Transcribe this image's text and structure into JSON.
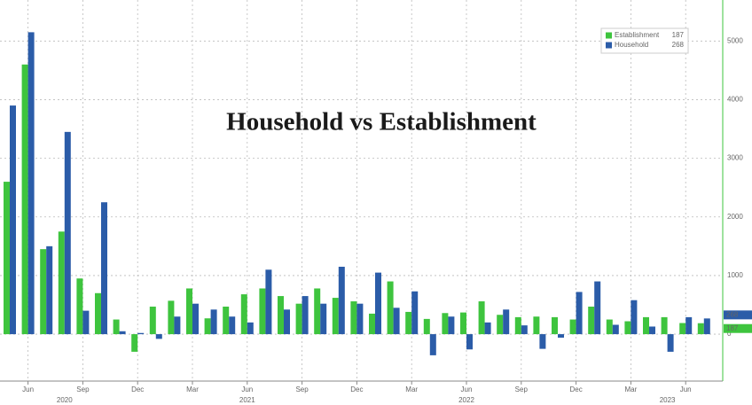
{
  "chart_data": {
    "type": "bar",
    "title": "Household vs Establishment",
    "categories": [
      null,
      "Jun",
      null,
      null,
      "Sep",
      null,
      null,
      "Dec",
      null,
      null,
      "Mar",
      null,
      null,
      "Jun",
      null,
      null,
      "Sep",
      null,
      null,
      "Dec",
      null,
      null,
      "Mar",
      null,
      null,
      "Jun",
      null,
      null,
      "Sep",
      null,
      null,
      "Dec",
      null,
      null,
      "Mar",
      null,
      null,
      "Jun",
      null
    ],
    "years": [
      null,
      null,
      null,
      "2020",
      null,
      null,
      null,
      null,
      null,
      null,
      null,
      null,
      null,
      "2021",
      null,
      null,
      null,
      null,
      null,
      null,
      null,
      null,
      null,
      null,
      null,
      "2022",
      null,
      null,
      null,
      null,
      null,
      null,
      null,
      null,
      null,
      null,
      "2023",
      null,
      null
    ],
    "series": [
      {
        "name": "Establishment",
        "color": "#3ec43e",
        "values": [
          2600,
          4600,
          1450,
          1750,
          950,
          700,
          250,
          -300,
          470,
          570,
          780,
          270,
          470,
          680,
          780,
          650,
          520,
          780,
          620,
          560,
          350,
          900,
          380,
          260,
          360,
          370,
          560,
          330,
          290,
          300,
          290,
          250,
          470,
          250,
          220,
          290,
          290,
          190,
          187
        ]
      },
      {
        "name": "Household",
        "color": "#2b5ca8",
        "values": [
          3900,
          5150,
          1500,
          3450,
          400,
          2250,
          50,
          20,
          -80,
          300,
          520,
          420,
          300,
          200,
          1100,
          420,
          650,
          520,
          1150,
          520,
          1050,
          450,
          730,
          -360,
          300,
          -260,
          200,
          420,
          150,
          -250,
          -60,
          720,
          900,
          160,
          580,
          130,
          -300,
          290,
          268
        ]
      }
    ],
    "ylim": [
      -800,
      5700
    ],
    "yticks": [
      0,
      1000,
      2000,
      3000,
      4000,
      5000
    ],
    "grid": true,
    "legend": "upper right"
  }
}
